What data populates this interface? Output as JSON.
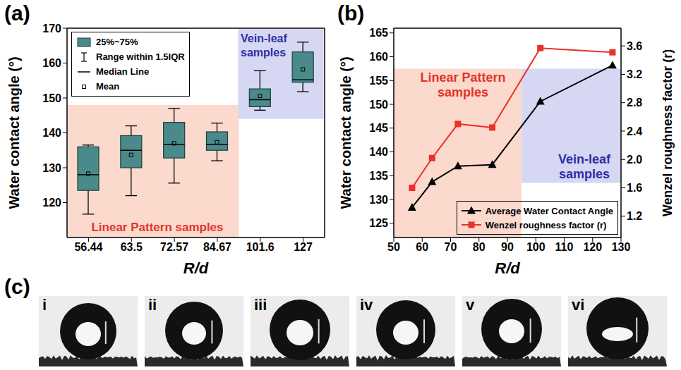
{
  "chart_data": [
    {
      "panel_label": "(a)",
      "type": "box",
      "x_label": "R/d",
      "y_label": "Water contact angle (°)",
      "categories": [
        "56.44",
        "63.5",
        "72.57",
        "84.67",
        "101.6",
        "127"
      ],
      "boxes": [
        {
          "whisker_low": 116.7,
          "q1": 123.5,
          "median": 128,
          "q3": 136,
          "whisker_high": 136.5,
          "mean": 128.3
        },
        {
          "whisker_low": 122,
          "q1": 130,
          "median": 135,
          "q3": 139.2,
          "whisker_high": 142,
          "mean": 133.7
        },
        {
          "whisker_low": 125.6,
          "q1": 132.8,
          "median": 136.7,
          "q3": 143,
          "whisker_high": 147,
          "mean": 137
        },
        {
          "whisker_low": 132,
          "q1": 135,
          "median": 136.7,
          "q3": 140.3,
          "whisker_high": 142.8,
          "mean": 137.3
        },
        {
          "whisker_low": 146.5,
          "q1": 147.5,
          "median": 149.5,
          "q3": 152.6,
          "whisker_high": 157.8,
          "mean": 150.6
        },
        {
          "whisker_low": 151.8,
          "q1": 154.5,
          "median": 155.2,
          "q3": 163.2,
          "whisker_high": 166,
          "mean": 158.2
        }
      ],
      "color": "#4a8a8a",
      "ylim": [
        110,
        170
      ],
      "yticks": [
        120,
        130,
        140,
        150,
        160,
        170
      ],
      "box_legend": [
        "25%~75%",
        "Range within 1.5IQR",
        "Median Line",
        "Mean"
      ],
      "legend": "upper left",
      "regions": [
        {
          "label": "Linear Pattern samples",
          "categories": [
            "56.44",
            "84.67"
          ],
          "ylim": [
            110,
            148
          ],
          "color": "#fbd9cd"
        },
        {
          "label": "Vein-leaf samples",
          "categories": [
            "101.6",
            "127"
          ],
          "ylim": [
            144,
            170
          ],
          "color": "#d6d7f2"
        }
      ]
    },
    {
      "panel_label": "(b)",
      "type": "line",
      "x_label": "R/d",
      "y_label": "Water contact angle (°)",
      "y2_label": "Wenzel roughness factor (r)",
      "x": [
        56.44,
        63.5,
        72.57,
        84.67,
        101.6,
        127
      ],
      "series": [
        {
          "name": "Average Water Contact Angle",
          "color": "#000000",
          "marker": "triangle",
          "values": [
            128.3,
            133.7,
            137,
            137.3,
            150.6,
            158.2
          ]
        },
        {
          "name": "Wenzel roughness factor (r)",
          "color": "#e8312a",
          "marker": "square",
          "axis": "y2",
          "values": [
            1.6,
            2.02,
            2.5,
            2.45,
            3.57,
            3.51
          ]
        }
      ],
      "xlim": [
        50,
        130
      ],
      "xticks": [
        50,
        60,
        70,
        80,
        90,
        100,
        110,
        120,
        130
      ],
      "ylim": [
        122,
        166
      ],
      "yticks": [
        125,
        130,
        135,
        140,
        145,
        150,
        155,
        160,
        165
      ],
      "y2lim": [
        0.9,
        3.85
      ],
      "y2ticks": [
        1.2,
        1.6,
        {
          "value": 2,
          "label": "2.0"
        },
        2.4,
        2.8,
        3.2,
        3.6
      ],
      "legend": "lower right",
      "regions": [
        {
          "label": "Linear Pattern samples",
          "xlim": [
            50,
            95
          ],
          "ylim": [
            122,
            157.5
          ],
          "color": "#fbd9cd"
        },
        {
          "label": "Vein-leaf samples",
          "xlim": [
            95,
            130
          ],
          "ylim": [
            133.5,
            157.5
          ],
          "color": "#d6d7f2"
        }
      ]
    }
  ],
  "images": {
    "panel_label": "(c)",
    "labels": [
      "i",
      "ii",
      "iii",
      "iv",
      "v",
      "vi"
    ]
  }
}
